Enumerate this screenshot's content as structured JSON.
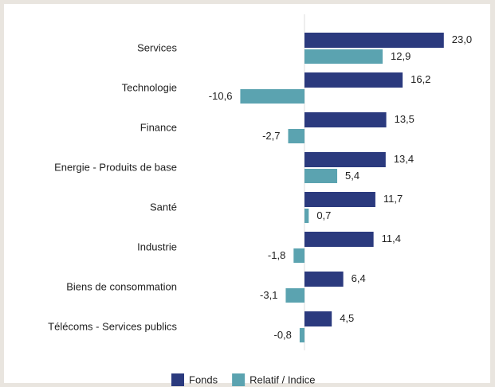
{
  "chart_data": {
    "type": "bar",
    "orientation": "horizontal",
    "categories": [
      "Services",
      "Technologie",
      "Finance",
      "Energie - Produits de base",
      "Santé",
      "Industrie",
      "Biens de consommation",
      "Télécoms - Services publics"
    ],
    "series": [
      {
        "name": "Fonds",
        "color": "#2b3a7e",
        "values": [
          23.0,
          16.2,
          13.5,
          13.4,
          11.7,
          11.4,
          6.4,
          4.5
        ],
        "value_labels": [
          "23,0",
          "16,2",
          "13,5",
          "13,4",
          "11,7",
          "11,4",
          "6,4",
          "4,5"
        ]
      },
      {
        "name": "Relatif / Indice",
        "color": "#5ba3b0",
        "values": [
          12.9,
          -10.6,
          -2.7,
          5.4,
          0.7,
          -1.8,
          -3.1,
          -0.8
        ],
        "value_labels": [
          "12,9",
          "-10,6",
          "-2,7",
          "5,4",
          "0,7",
          "-1,8",
          "-3,1",
          "-0,8"
        ]
      }
    ]
  }
}
